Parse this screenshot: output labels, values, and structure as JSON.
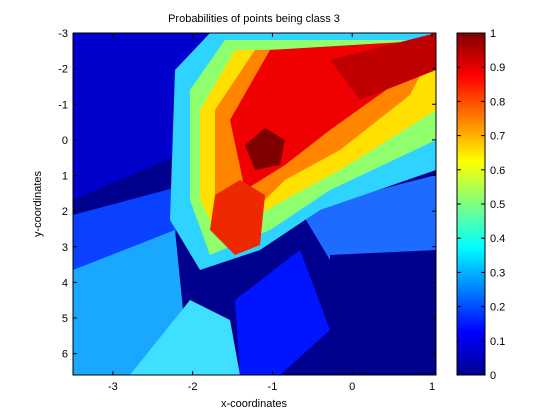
{
  "chart_data": {
    "type": "heatmap",
    "title": "Probabilities of points being class 3",
    "xlabel": "x-coordinates",
    "ylabel": "y-coordinates",
    "xlim": [
      -3.5,
      1.05
    ],
    "ylim": [
      -3.0,
      6.6
    ],
    "y_axis_reversed": true,
    "xticks": [
      -3,
      -2,
      -1,
      0,
      1
    ],
    "yticks": [
      -3,
      -2,
      -1,
      0,
      1,
      2,
      3,
      4,
      5,
      6
    ],
    "colorbar": {
      "colormap": "jet",
      "range": [
        0,
        1
      ],
      "ticks": [
        0,
        0.1,
        0.2,
        0.3,
        0.4,
        0.5,
        0.6,
        0.7,
        0.8,
        0.9,
        1
      ]
    },
    "regions": [
      {
        "region": "upper-right band along diagonal (x -1.8 to 1, y -3 to 0)",
        "value": 0.9
      },
      {
        "region": "center near (-1.1, 0.1)",
        "value": 1.0
      },
      {
        "region": "cluster near (-1.4, 2.0)",
        "value": 0.85
      },
      {
        "region": "far right lower area (x 0 to 1, y 2 to 6.6)",
        "value": 0.05
      },
      {
        "region": "upper left area (x -3.5 to -2, y -3 to 1.5)",
        "value": 0.05
      },
      {
        "region": "lower left fan (x -3.5 to -2, y 3 to 6.6)",
        "value": 0.3
      },
      {
        "region": "bottom center (x -2 to 0, y 4.5 to 6.6)",
        "value": 0.1
      }
    ]
  }
}
